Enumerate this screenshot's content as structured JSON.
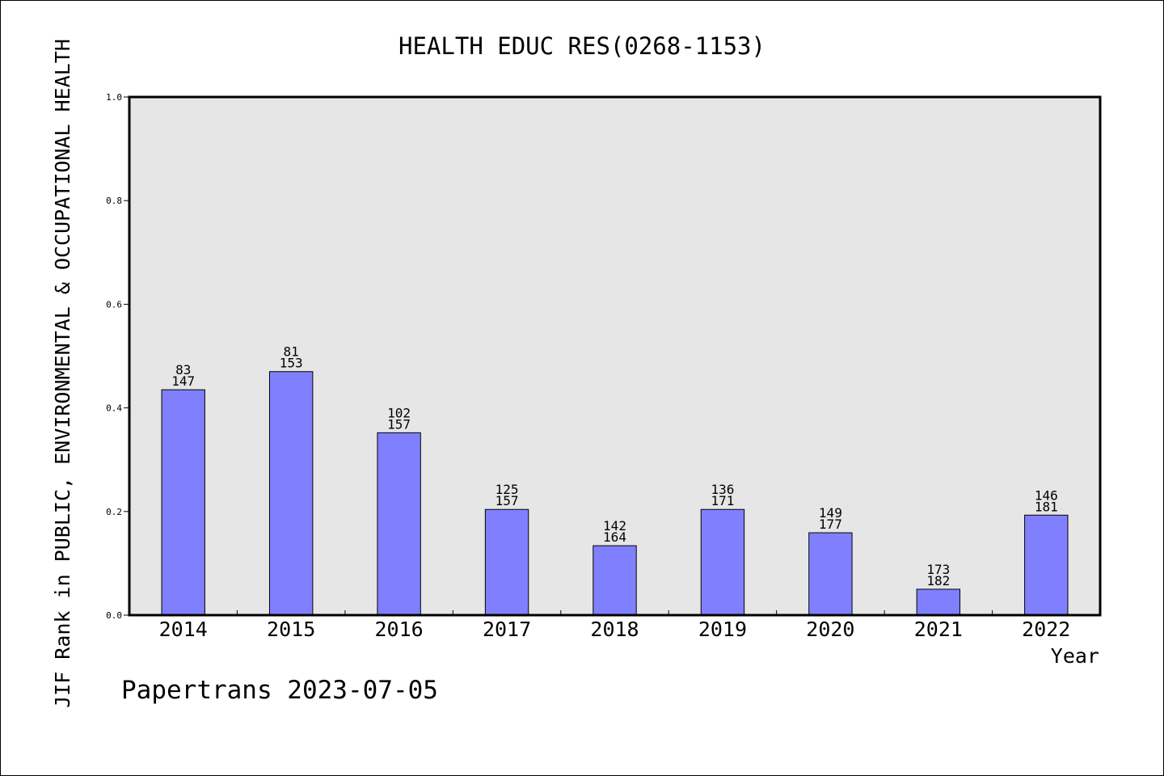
{
  "chart_data": {
    "type": "bar",
    "title": "HEALTH EDUC RES(0268-1153)",
    "xlabel": "Year",
    "ylabel": "JIF Rank in PUBLIC, ENVIRONMENTAL & OCCUPATIONAL HEALTH",
    "ylim": [
      0,
      1.0
    ],
    "yticks": [
      "0.0",
      "0.2",
      "0.4",
      "0.6",
      "0.8",
      "1.0"
    ],
    "categories": [
      "2014",
      "2015",
      "2016",
      "2017",
      "2018",
      "2019",
      "2020",
      "2021",
      "2022"
    ],
    "values": [
      0.435,
      0.47,
      0.352,
      0.204,
      0.134,
      0.204,
      0.159,
      0.05,
      0.193
    ],
    "bar_labels": [
      {
        "rank": "83",
        "total": "147"
      },
      {
        "rank": "81",
        "total": "153"
      },
      {
        "rank": "102",
        "total": "157"
      },
      {
        "rank": "125",
        "total": "157"
      },
      {
        "rank": "142",
        "total": "164"
      },
      {
        "rank": "136",
        "total": "171"
      },
      {
        "rank": "149",
        "total": "177"
      },
      {
        "rank": "173",
        "total": "182"
      },
      {
        "rank": "146",
        "total": "181"
      }
    ],
    "grid": false,
    "colors": {
      "bar": "#8080ff",
      "plot_bg": "#e6e6e6"
    }
  },
  "footer": "Papertrans 2023-07-05"
}
